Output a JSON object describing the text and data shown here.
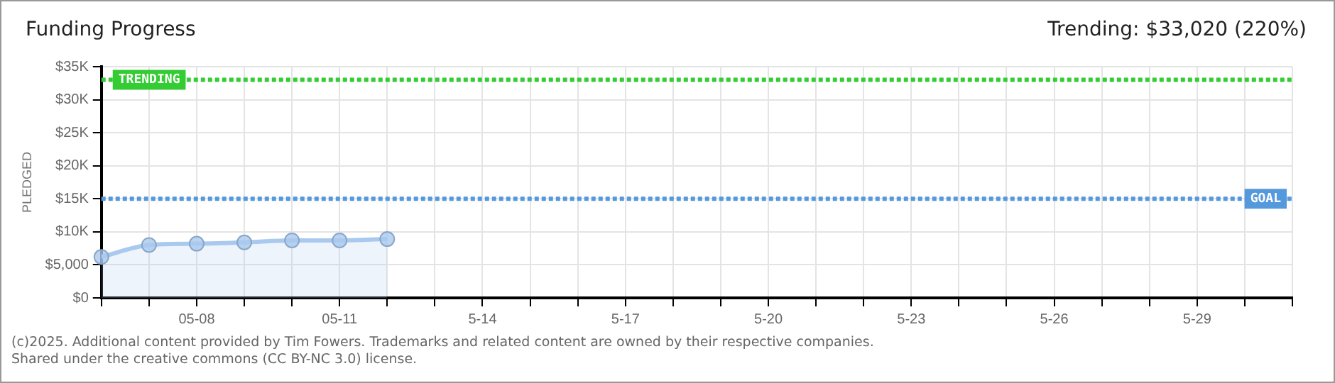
{
  "chart_data": {
    "type": "area",
    "title": "Funding Progress",
    "subtitle": "Trending: $33,020 (220%)",
    "ylabel": "PLEDGED",
    "categories": [
      null,
      null,
      "05-08",
      null,
      null,
      "05-11",
      null,
      null,
      "5-14",
      null,
      null,
      "5-17",
      null,
      null,
      "5-20",
      null,
      null,
      "5-23",
      null,
      null,
      "5-26",
      null,
      null,
      "5-29",
      null,
      null
    ],
    "values": [
      6200,
      8000,
      8200,
      8400,
      8700,
      8700,
      8900,
      null,
      null,
      null,
      null,
      null,
      null,
      null,
      null,
      null,
      null,
      null,
      null,
      null,
      null,
      null,
      null,
      null,
      null,
      null
    ],
    "color": "#a9c9ee",
    "marker": "circle",
    "ylim": [
      0,
      35000
    ],
    "yticks": [
      {
        "value": 0,
        "label": "$0"
      },
      {
        "value": 5000,
        "label": "$5,000"
      },
      {
        "value": 10000,
        "label": "$10K"
      },
      {
        "value": 15000,
        "label": "$15K"
      },
      {
        "value": 20000,
        "label": "$20K"
      },
      {
        "value": 25000,
        "label": "$25K"
      },
      {
        "value": 30000,
        "label": "$30K"
      },
      {
        "value": 35000,
        "label": "$35K"
      }
    ],
    "grid": true,
    "ref_lines": [
      {
        "axis": "y",
        "value": 33020,
        "label": "TRENDING",
        "color": "#33cc33",
        "line_style": "dotted"
      },
      {
        "axis": "y",
        "value": 15000,
        "label": "GOAL",
        "color": "#5599dd",
        "line_style": "dotted"
      }
    ],
    "annotations": [
      "(c)2025. Additional content provided by Tim Fowers. Trademarks and related content are owned by their respective companies.",
      "Shared under the creative commons (CC BY-NC 3.0) license."
    ]
  }
}
